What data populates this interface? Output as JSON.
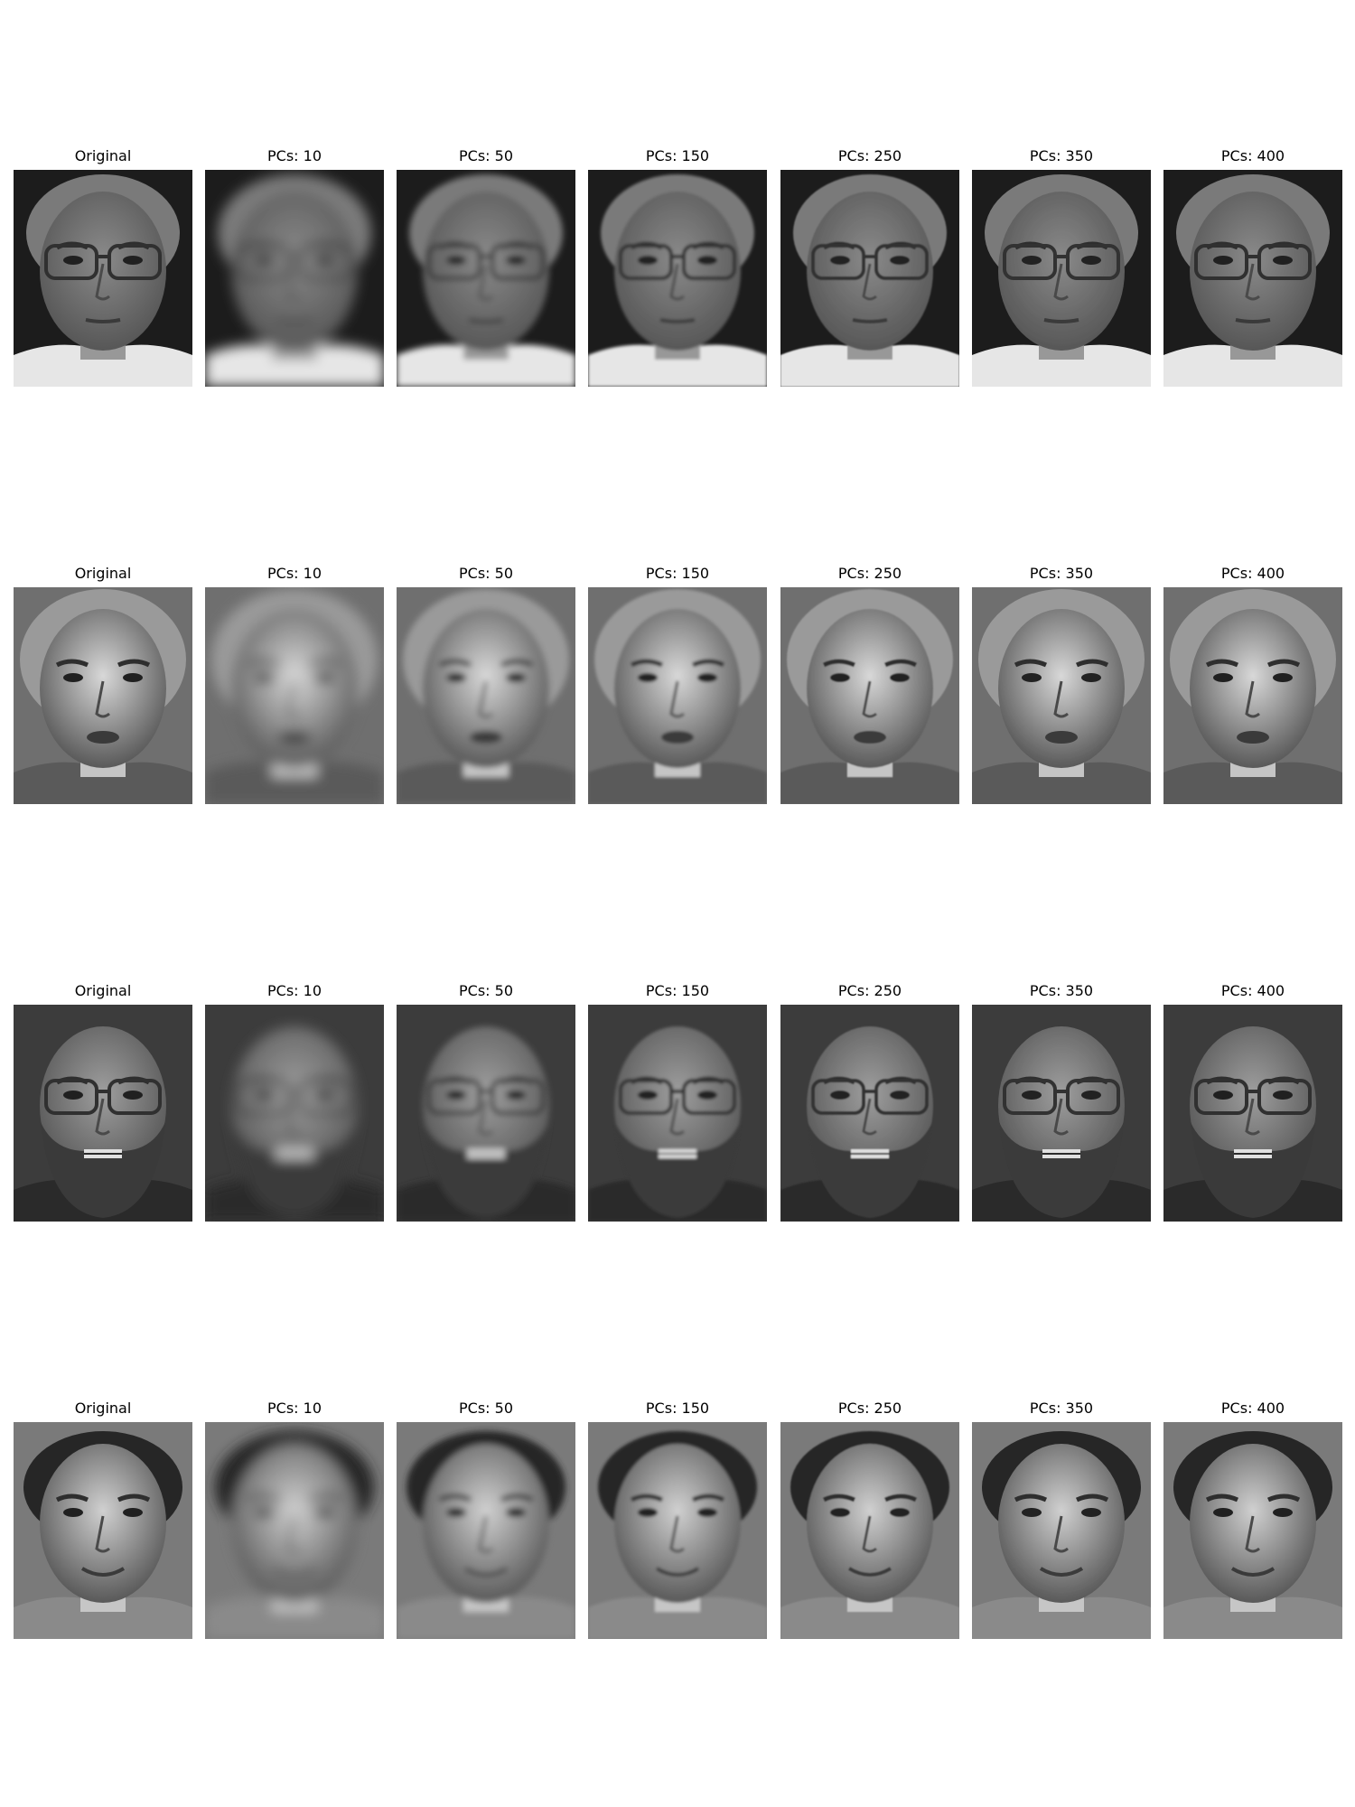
{
  "figure": {
    "rows": [
      {
        "subject": "man-with-glasses-receding-hair",
        "panels": [
          {
            "title": "Original",
            "pcs": null
          },
          {
            "title": "PCs: 10",
            "pcs": 10
          },
          {
            "title": "PCs: 50",
            "pcs": 50
          },
          {
            "title": "PCs: 150",
            "pcs": 150
          },
          {
            "title": "PCs: 250",
            "pcs": 250
          },
          {
            "title": "PCs: 350",
            "pcs": 350
          },
          {
            "title": "PCs: 400",
            "pcs": 400
          }
        ]
      },
      {
        "subject": "young-man-curly-hair",
        "panels": [
          {
            "title": "Original",
            "pcs": null
          },
          {
            "title": "PCs: 10",
            "pcs": 10
          },
          {
            "title": "PCs: 50",
            "pcs": 50
          },
          {
            "title": "PCs: 150",
            "pcs": 150
          },
          {
            "title": "PCs: 250",
            "pcs": 250
          },
          {
            "title": "PCs: 350",
            "pcs": 350
          },
          {
            "title": "PCs: 400",
            "pcs": 400
          }
        ]
      },
      {
        "subject": "bald-man-glasses-beard",
        "panels": [
          {
            "title": "Original",
            "pcs": null
          },
          {
            "title": "PCs: 10",
            "pcs": 10
          },
          {
            "title": "PCs: 50",
            "pcs": 50
          },
          {
            "title": "PCs: 150",
            "pcs": 150
          },
          {
            "title": "PCs: 250",
            "pcs": 250
          },
          {
            "title": "PCs: 350",
            "pcs": 350
          },
          {
            "title": "PCs: 400",
            "pcs": 400
          }
        ]
      },
      {
        "subject": "man-dark-hair-smiling",
        "panels": [
          {
            "title": "Original",
            "pcs": null
          },
          {
            "title": "PCs: 10",
            "pcs": 10
          },
          {
            "title": "PCs: 50",
            "pcs": 50
          },
          {
            "title": "PCs: 150",
            "pcs": 150
          },
          {
            "title": "PCs: 250",
            "pcs": 250
          },
          {
            "title": "PCs: 350",
            "pcs": 350
          },
          {
            "title": "PCs: 400",
            "pcs": 400
          }
        ]
      }
    ]
  }
}
